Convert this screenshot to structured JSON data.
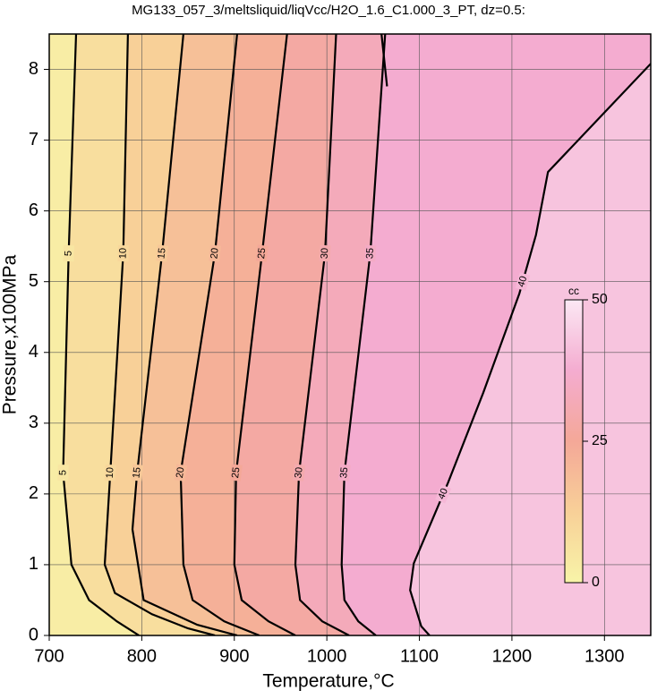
{
  "chart_data": {
    "type": "contour",
    "title": "MG133_057_3/meltsliquid/liqVcc/H2O_1.6_C1.000_3_PT, dz=0.5:",
    "x_label": "Temperature,°C",
    "y_label": "Pressure,x100MPa",
    "xlim": [
      700,
      1350
    ],
    "ylim": [
      0,
      8.5
    ],
    "xticks": [
      700,
      800,
      900,
      1000,
      1100,
      1200,
      1300
    ],
    "yticks": [
      0,
      1,
      2,
      3,
      4,
      5,
      6,
      7,
      8
    ],
    "grid": true,
    "colormap": [
      {
        "value": 0,
        "color": "#f8f4a8"
      },
      {
        "value": 12.5,
        "color": "#f8d098"
      },
      {
        "value": 25,
        "color": "#f4a898"
      },
      {
        "value": 37.5,
        "color": "#f4acd0"
      },
      {
        "value": 50,
        "color": "#fce8f4"
      }
    ],
    "colorbar": {
      "label": "cc",
      "clim": [
        0,
        50
      ],
      "ticks": [
        0,
        25,
        50
      ]
    },
    "contours": [
      {
        "level": 5,
        "x": [
          729,
          721,
          715,
          724,
          743,
          773,
          797
        ],
        "y": [
          8.5,
          5.4,
          2.3,
          1,
          0.5,
          0.2,
          0
        ]
      },
      {
        "level": 10,
        "x": [
          785,
          780,
          766,
          760,
          771,
          811,
          850,
          879
        ],
        "y": [
          8.5,
          5.4,
          2.3,
          1,
          0.6,
          0.3,
          0.1,
          0
        ]
      },
      {
        "level": 15,
        "x": [
          845,
          822,
          795,
          790,
          802,
          860,
          903
        ],
        "y": [
          8.5,
          5.4,
          2.3,
          1.5,
          0.5,
          0.15,
          0
        ]
      },
      {
        "level": 20,
        "x": [
          903,
          879,
          842,
          845,
          855,
          889,
          927
        ],
        "y": [
          8.5,
          5.4,
          2.3,
          1,
          0.5,
          0.2,
          0
        ]
      },
      {
        "level": 25,
        "x": [
          957,
          930,
          902,
          900,
          908,
          937,
          966
        ],
        "y": [
          8.5,
          5.4,
          2.3,
          1,
          0.5,
          0.2,
          0
        ]
      },
      {
        "level": 30,
        "x": [
          1010,
          998,
          970,
          966,
          971,
          995,
          1024
        ],
        "y": [
          8.5,
          5.4,
          2.3,
          1,
          0.5,
          0.2,
          0
        ]
      },
      {
        "level": 35,
        "x": [
          1063,
          1047,
          1019,
          1016,
          1019,
          1034,
          1053
        ],
        "y": [
          8.5,
          5.4,
          2.3,
          1,
          0.5,
          0.2,
          0
        ]
      },
      {
        "level": 40,
        "x": [
          1350,
          1239,
          1226,
          1208,
          1169,
          1131,
          1094,
          1090,
          1102,
          1111
        ],
        "y": [
          8.08,
          6.55,
          5.66,
          4.83,
          3.43,
          2.16,
          1.02,
          0.64,
          0.13,
          0
        ]
      },
      {
        "level": 40,
        "x": [
          1059,
          1065
        ],
        "y": [
          8.5,
          7.76
        ]
      }
    ]
  }
}
